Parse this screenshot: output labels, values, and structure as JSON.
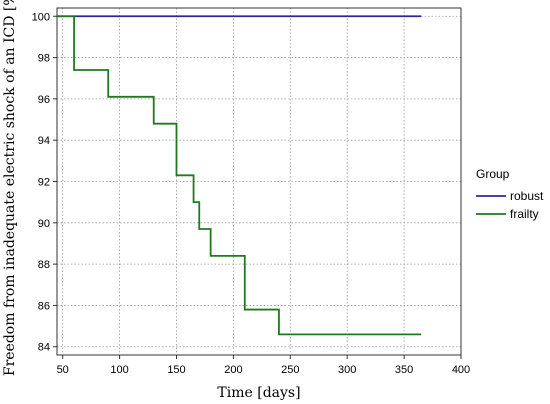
{
  "chart_data": {
    "type": "line",
    "step": true,
    "xlabel": "Time [days]",
    "ylabel": "Freedom from inadequate electric shock of an ICD [%]",
    "xlim": [
      45,
      400
    ],
    "ylim": [
      83.6,
      100.4
    ],
    "xticks": [
      50,
      100,
      150,
      200,
      250,
      300,
      350,
      400
    ],
    "yticks": [
      84,
      86,
      88,
      90,
      92,
      94,
      96,
      98,
      100
    ],
    "grid": true,
    "legend": {
      "title": "Group",
      "placement": "right"
    },
    "series": [
      {
        "name": "robust",
        "color": "#2a2aa0",
        "x": [
          45,
          365
        ],
        "y": [
          100,
          100
        ]
      },
      {
        "name": "frailty",
        "color": "#1f7a1f",
        "x": [
          45,
          60,
          90,
          130,
          150,
          165,
          170,
          180,
          210,
          240,
          365
        ],
        "y": [
          100,
          97.4,
          96.1,
          94.8,
          92.3,
          91.0,
          89.7,
          88.4,
          85.8,
          84.6,
          84.6
        ]
      }
    ]
  }
}
